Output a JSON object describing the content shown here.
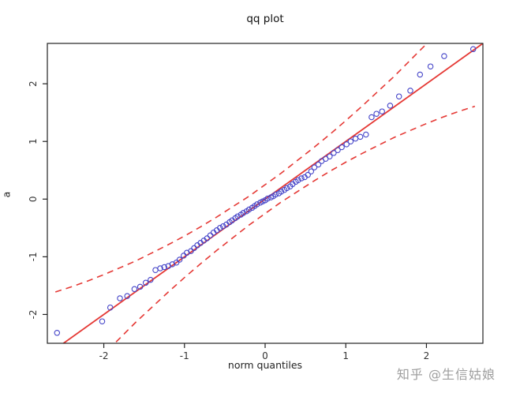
{
  "watermark": {
    "text": "知乎 @生信姑娘"
  },
  "chart_data": {
    "type": "scatter",
    "title": "qq plot",
    "xlabel": "norm quantiles",
    "ylabel": "a",
    "xlim": [
      -2.7,
      2.7
    ],
    "ylim": [
      -2.5,
      2.7
    ],
    "x_ticks": [
      -2,
      -1,
      0,
      1,
      2
    ],
    "y_ticks": [
      -2,
      -1,
      0,
      1,
      2
    ],
    "grid": false,
    "legend": "none",
    "colors": {
      "points": "#4444c8",
      "line": "#e53935",
      "envelope": "#e53935",
      "box": "#222222",
      "tick_text": "#333333"
    },
    "reference_line": {
      "x1": -2.7,
      "y1": -2.7,
      "x2": 2.7,
      "y2": 2.7
    },
    "envelope_upper": [
      [
        -2.6,
        -1.61
      ],
      [
        -2.4,
        -1.52
      ],
      [
        -2.2,
        -1.42
      ],
      [
        -2.0,
        -1.31
      ],
      [
        -1.8,
        -1.19
      ],
      [
        -1.6,
        -1.07
      ],
      [
        -1.4,
        -0.93
      ],
      [
        -1.2,
        -0.79
      ],
      [
        -1.0,
        -0.64
      ],
      [
        -0.8,
        -0.48
      ],
      [
        -0.6,
        -0.31
      ],
      [
        -0.4,
        -0.13
      ],
      [
        -0.2,
        0.05
      ],
      [
        0.0,
        0.25
      ],
      [
        0.2,
        0.45
      ],
      [
        0.4,
        0.67
      ],
      [
        0.6,
        0.89
      ],
      [
        0.8,
        1.12
      ],
      [
        1.0,
        1.36
      ],
      [
        1.2,
        1.61
      ],
      [
        1.4,
        1.87
      ],
      [
        1.6,
        2.13
      ],
      [
        1.8,
        2.41
      ],
      [
        2.0,
        2.69
      ],
      [
        2.2,
        2.98
      ],
      [
        2.4,
        3.28
      ],
      [
        2.6,
        3.59
      ]
    ],
    "envelope_lower": [
      [
        -2.6,
        -3.59
      ],
      [
        -2.4,
        -3.28
      ],
      [
        -2.2,
        -2.98
      ],
      [
        -2.0,
        -2.69
      ],
      [
        -1.8,
        -2.41
      ],
      [
        -1.6,
        -2.13
      ],
      [
        -1.4,
        -1.87
      ],
      [
        -1.2,
        -1.61
      ],
      [
        -1.0,
        -1.36
      ],
      [
        -0.8,
        -1.12
      ],
      [
        -0.6,
        -0.89
      ],
      [
        -0.4,
        -0.67
      ],
      [
        -0.2,
        -0.45
      ],
      [
        0.0,
        -0.25
      ],
      [
        0.2,
        -0.05
      ],
      [
        0.4,
        0.13
      ],
      [
        0.6,
        0.31
      ],
      [
        0.8,
        0.48
      ],
      [
        1.0,
        0.64
      ],
      [
        1.2,
        0.79
      ],
      [
        1.4,
        0.93
      ],
      [
        1.6,
        1.07
      ],
      [
        1.8,
        1.19
      ],
      [
        2.0,
        1.31
      ],
      [
        2.2,
        1.42
      ],
      [
        2.4,
        1.52
      ],
      [
        2.6,
        1.61
      ]
    ],
    "points": [
      [
        -2.58,
        -2.32
      ],
      [
        -2.02,
        -2.12
      ],
      [
        -1.92,
        -1.88
      ],
      [
        -1.8,
        -1.72
      ],
      [
        -1.71,
        -1.68
      ],
      [
        -1.62,
        -1.56
      ],
      [
        -1.55,
        -1.52
      ],
      [
        -1.48,
        -1.45
      ],
      [
        -1.42,
        -1.4
      ],
      [
        -1.36,
        -1.23
      ],
      [
        -1.3,
        -1.2
      ],
      [
        -1.25,
        -1.18
      ],
      [
        -1.2,
        -1.16
      ],
      [
        -1.15,
        -1.13
      ],
      [
        -1.1,
        -1.1
      ],
      [
        -1.06,
        -1.05
      ],
      [
        -1.01,
        -0.98
      ],
      [
        -0.97,
        -0.93
      ],
      [
        -0.92,
        -0.9
      ],
      [
        -0.88,
        -0.85
      ],
      [
        -0.84,
        -0.8
      ],
      [
        -0.8,
        -0.76
      ],
      [
        -0.76,
        -0.72
      ],
      [
        -0.72,
        -0.68
      ],
      [
        -0.68,
        -0.63
      ],
      [
        -0.64,
        -0.58
      ],
      [
        -0.6,
        -0.54
      ],
      [
        -0.56,
        -0.5
      ],
      [
        -0.52,
        -0.47
      ],
      [
        -0.48,
        -0.44
      ],
      [
        -0.44,
        -0.4
      ],
      [
        -0.41,
        -0.37
      ],
      [
        -0.37,
        -0.33
      ],
      [
        -0.34,
        -0.3
      ],
      [
        -0.3,
        -0.27
      ],
      [
        -0.27,
        -0.24
      ],
      [
        -0.23,
        -0.21
      ],
      [
        -0.2,
        -0.18
      ],
      [
        -0.16,
        -0.15
      ],
      [
        -0.13,
        -0.12
      ],
      [
        -0.1,
        -0.09
      ],
      [
        -0.06,
        -0.06
      ],
      [
        -0.03,
        -0.04
      ],
      [
        0.0,
        -0.02
      ],
      [
        0.03,
        0.01
      ],
      [
        0.07,
        0.03
      ],
      [
        0.1,
        0.05
      ],
      [
        0.13,
        0.08
      ],
      [
        0.17,
        0.1
      ],
      [
        0.2,
        0.13
      ],
      [
        0.24,
        0.16
      ],
      [
        0.27,
        0.19
      ],
      [
        0.31,
        0.22
      ],
      [
        0.34,
        0.26
      ],
      [
        0.38,
        0.3
      ],
      [
        0.41,
        0.33
      ],
      [
        0.45,
        0.36
      ],
      [
        0.49,
        0.38
      ],
      [
        0.53,
        0.42
      ],
      [
        0.57,
        0.48
      ],
      [
        0.61,
        0.55
      ],
      [
        0.66,
        0.6
      ],
      [
        0.7,
        0.66
      ],
      [
        0.75,
        0.7
      ],
      [
        0.8,
        0.74
      ],
      [
        0.85,
        0.8
      ],
      [
        0.9,
        0.85
      ],
      [
        0.95,
        0.9
      ],
      [
        1.01,
        0.95
      ],
      [
        1.06,
        1.0
      ],
      [
        1.12,
        1.05
      ],
      [
        1.18,
        1.08
      ],
      [
        1.25,
        1.12
      ],
      [
        1.32,
        1.42
      ],
      [
        1.38,
        1.48
      ],
      [
        1.45,
        1.52
      ],
      [
        1.55,
        1.62
      ],
      [
        1.66,
        1.78
      ],
      [
        1.8,
        1.88
      ],
      [
        1.92,
        2.16
      ],
      [
        2.05,
        2.3
      ],
      [
        2.22,
        2.48
      ],
      [
        2.58,
        2.6
      ]
    ]
  }
}
